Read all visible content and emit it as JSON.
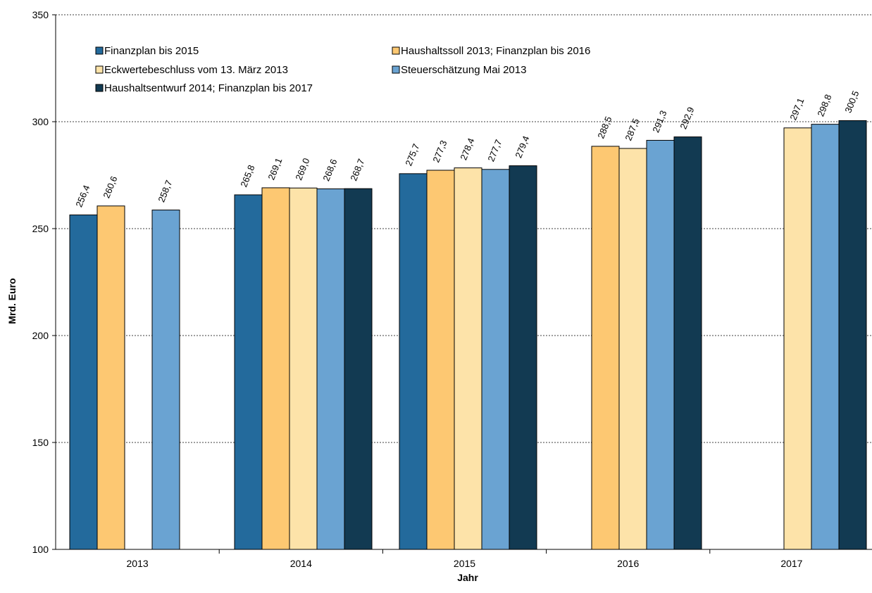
{
  "chart_data": {
    "type": "bar",
    "title": "",
    "xlabel": "Jahr",
    "ylabel": "Mrd. Euro",
    "ylim": [
      100,
      350
    ],
    "yticks": [
      100,
      150,
      200,
      250,
      300,
      350
    ],
    "grid": true,
    "legend_position": "top-left",
    "categories": [
      "2013",
      "2014",
      "2015",
      "2016",
      "2017"
    ],
    "series": [
      {
        "name": "Finanzplan bis 2015",
        "color": "#236a9c",
        "values": [
          256.4,
          265.8,
          275.7,
          null,
          null
        ],
        "labels": [
          "256,4",
          "265,8",
          "275,7",
          null,
          null
        ]
      },
      {
        "name": "Haushaltssoll 2013; Finanzplan bis 2016",
        "color": "#fdc872",
        "values": [
          260.6,
          269.1,
          277.3,
          288.5,
          null
        ],
        "labels": [
          "260,6",
          "269,1",
          "277,3",
          "288,5",
          null
        ]
      },
      {
        "name": "Eckwertebeschluss vom 13. März 2013",
        "color": "#fde3a9",
        "values": [
          null,
          269.0,
          278.4,
          287.5,
          297.1
        ],
        "labels": [
          null,
          "269,0",
          "278,4",
          "287,5",
          "297,1"
        ]
      },
      {
        "name": "Steuerschätzung Mai 2013",
        "color": "#6aa3d2",
        "values": [
          258.7,
          268.6,
          277.7,
          291.3,
          298.8
        ],
        "labels": [
          "258,7",
          "268,6",
          "277,7",
          "291,3",
          "298,8"
        ]
      },
      {
        "name": "Haushaltsentwurf 2014; Finanzplan bis 2017",
        "color": "#123a52",
        "values": [
          null,
          268.7,
          279.4,
          292.9,
          300.5
        ],
        "labels": [
          null,
          "268,7",
          "279,4",
          "292,9",
          "300,5"
        ]
      }
    ]
  }
}
